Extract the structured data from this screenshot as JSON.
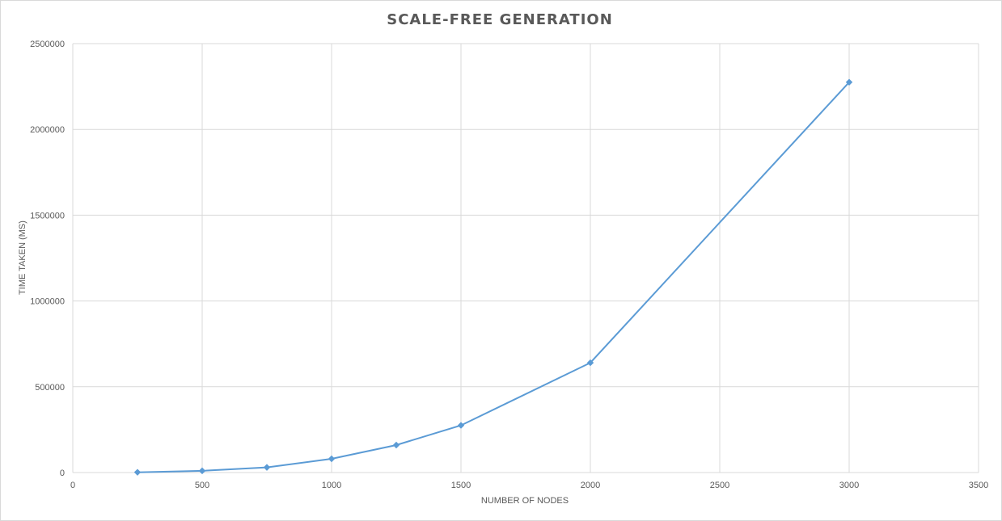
{
  "chart_data": {
    "type": "scatter",
    "title": "SCALE-FREE GENERATION",
    "xlabel": "NUMBER OF NODES",
    "ylabel": "TIME TAKEN (MS)",
    "xlim": [
      0,
      3500
    ],
    "ylim": [
      0,
      2500000
    ],
    "x_ticks": [
      "0",
      "500",
      "1000",
      "1500",
      "2000",
      "2500",
      "3000",
      "3500"
    ],
    "y_ticks": [
      "0",
      "500000",
      "1000000",
      "1500000",
      "2000000",
      "2500000"
    ],
    "grid": true,
    "legend": "none",
    "color": "#5b9bd5",
    "series": [
      {
        "points": [
          {
            "x": 250,
            "y": 1500
          },
          {
            "x": 500,
            "y": 10000
          },
          {
            "x": 750,
            "y": 30000
          },
          {
            "x": 1000,
            "y": 80000
          },
          {
            "x": 1250,
            "y": 160000
          },
          {
            "x": 1500,
            "y": 275000
          },
          {
            "x": 2000,
            "y": 640000
          },
          {
            "x": 3000,
            "y": 2275000
          }
        ]
      }
    ]
  }
}
